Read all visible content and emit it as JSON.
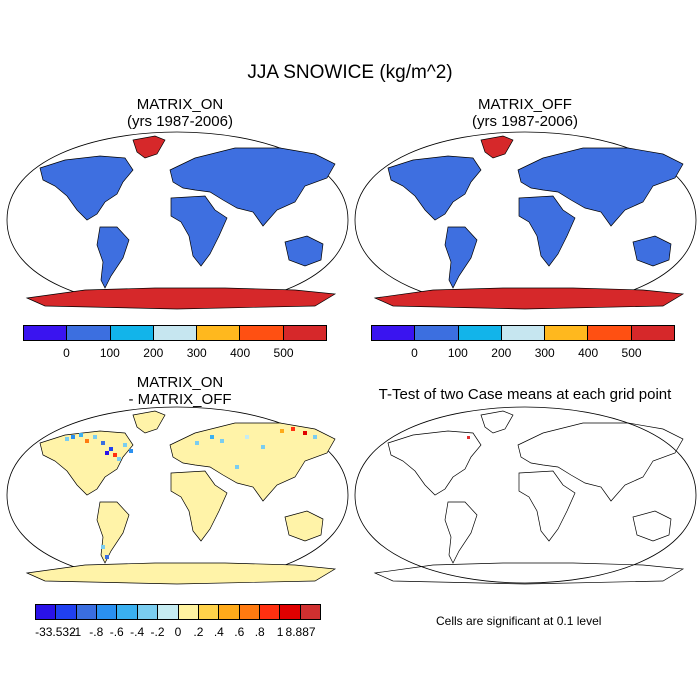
{
  "title": "JJA SNOWICE (kg/m^2)",
  "panels": [
    {
      "title_line1": "MATRIX_ON",
      "title_line2": "(yrs 1987-2006)"
    },
    {
      "title_line1": "MATRIX_OFF",
      "title_line2": "(yrs 1987-2006)"
    },
    {
      "title_line1": "MATRIX_ON",
      "title_line2": "- MATRIX_OFF"
    },
    {
      "title_line1": "T-Test of two Case means at each grid point",
      "title_line2": ""
    }
  ],
  "colorbar_top": {
    "labels": [
      "0",
      "100",
      "200",
      "300",
      "400",
      "500"
    ],
    "colors": [
      "#3a14f0",
      "#3c6fe0",
      "#12b4ea",
      "#c6e6f0",
      "#ffb81e",
      "#ff5012",
      "#d6282a"
    ]
  },
  "colorbar_diff": {
    "labels": [
      "-33.532",
      "-1",
      "-.8",
      "-.6",
      "-.4",
      "-.2",
      "0",
      ".2",
      ".4",
      ".6",
      ".8",
      "1",
      "8.887"
    ],
    "colors": [
      "#2a12e8",
      "#2040f0",
      "#3a6ee0",
      "#2a90f0",
      "#3ab0f0",
      "#7acdf0",
      "#c6ecf2",
      "#fff3a0",
      "#ffd24a",
      "#ffaa1a",
      "#ff7a10",
      "#ff3010",
      "#e00000",
      "#d03030"
    ]
  },
  "significance_note": "Cells are significant at 0.1 level",
  "colors": {
    "land_mean": "#3e6fe0",
    "ice_mean": "#d6282a",
    "land_diff": "#fff3a8",
    "sig_marker": "#e03030"
  }
}
